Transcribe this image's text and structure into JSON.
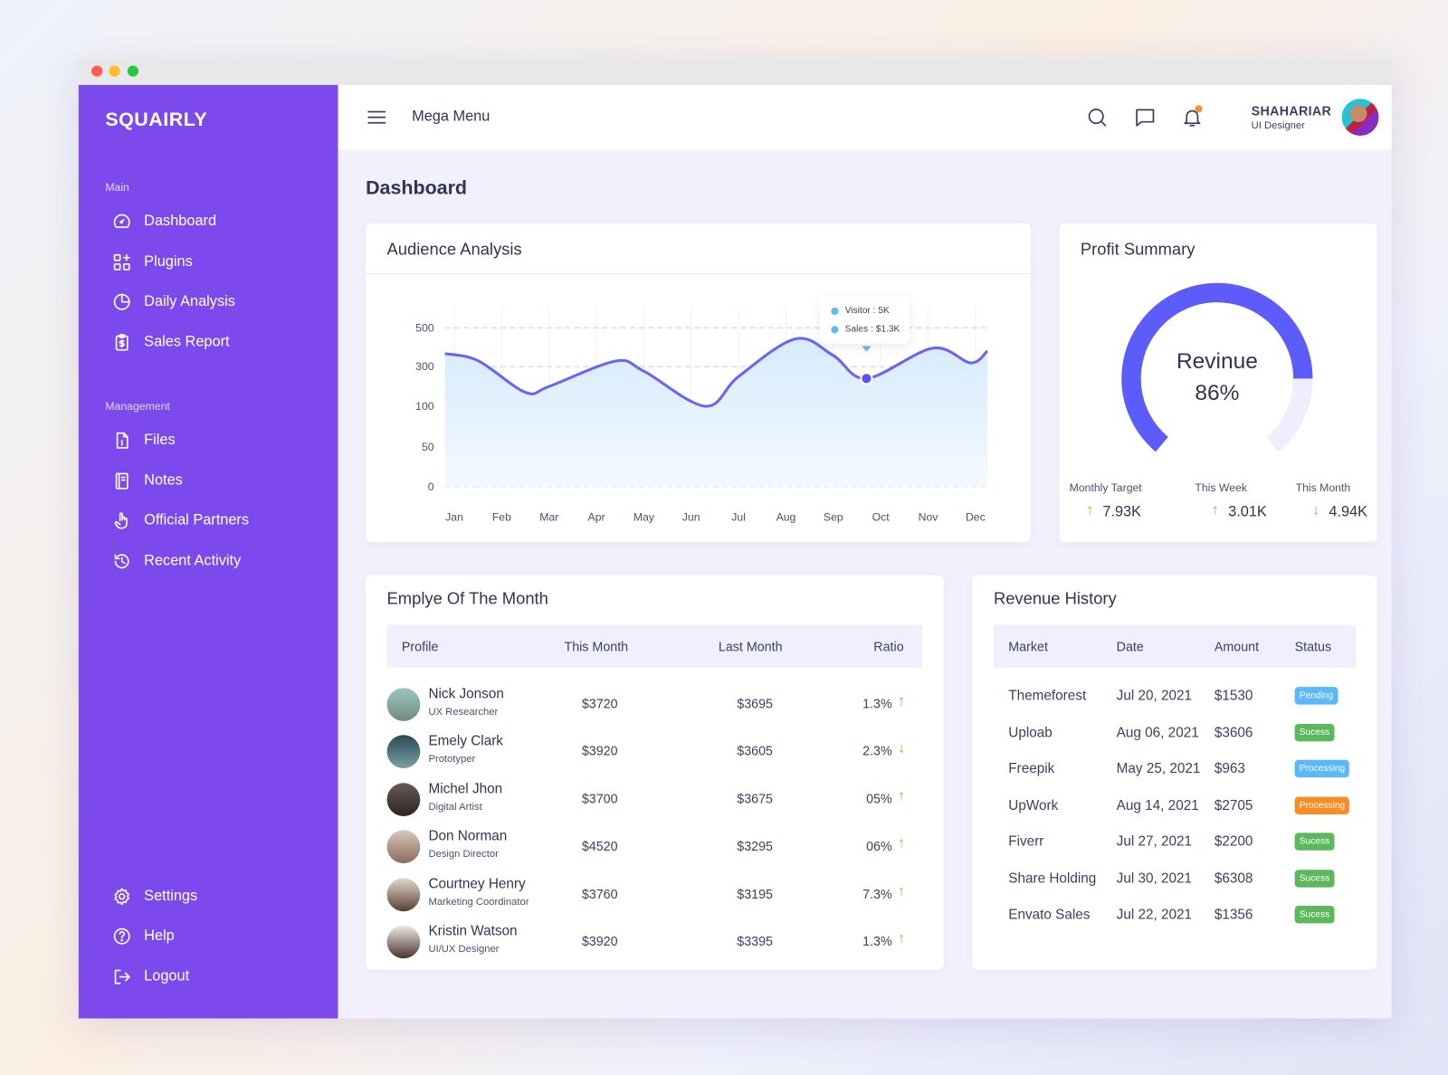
{
  "window": {
    "controls": {
      "close": "#ff5f57",
      "minimize": "#febc2e",
      "maximize": "#28c840"
    }
  },
  "brand": "SQUAIRLY",
  "sidebar": {
    "main_label": "Main",
    "main_items": [
      {
        "label": "Dashboard",
        "icon": "gauge-icon"
      },
      {
        "label": "Plugins",
        "icon": "grid-plus-icon"
      },
      {
        "label": "Daily Analysis",
        "icon": "pie-icon"
      },
      {
        "label": "Sales Report",
        "icon": "clipboard-dollar-icon"
      }
    ],
    "management_label": "Management",
    "management_items": [
      {
        "label": "Files",
        "icon": "file-icon"
      },
      {
        "label": "Notes",
        "icon": "notebook-icon"
      },
      {
        "label": "Official Partners",
        "icon": "hand-icon"
      },
      {
        "label": "Recent Activity",
        "icon": "history-icon"
      }
    ],
    "bottom_items": [
      {
        "label": "Settings",
        "icon": "gear-icon"
      },
      {
        "label": "Help",
        "icon": "help-icon"
      },
      {
        "label": "Logout",
        "icon": "logout-icon"
      }
    ]
  },
  "header": {
    "menu_label": "Mega Menu",
    "user": {
      "name": "SHAHARIAR",
      "role": "UI Designer"
    },
    "notification_dot_color": "#f7932c"
  },
  "page_title": "Dashboard",
  "audience": {
    "title": "Audience Analysis",
    "tooltip": {
      "visitor": "Visitor : 5K",
      "sales": "Sales : $1.3K"
    }
  },
  "chart_data": {
    "type": "area",
    "title": "Audience Analysis",
    "categories": [
      "Jan",
      "Feb",
      "Mar",
      "Apr",
      "May",
      "Jun",
      "Jul",
      "Aug",
      "Sep",
      "Oct",
      "Nov",
      "Dec"
    ],
    "y_ticks": [
      0,
      50,
      100,
      300,
      500
    ],
    "ylim": [
      0,
      500
    ],
    "grid": true,
    "series": [
      {
        "name": "Audience",
        "color": "#6b63f6",
        "points": [
          [
            -0.2,
            367
          ],
          [
            0.5,
            330
          ],
          [
            1.5,
            170
          ],
          [
            2,
            200
          ],
          [
            3.4,
            328
          ],
          [
            4,
            277
          ],
          [
            5.3,
            100
          ],
          [
            6,
            250
          ],
          [
            7.2,
            443
          ],
          [
            8,
            357
          ],
          [
            8.7,
            240
          ],
          [
            10.1,
            395
          ],
          [
            10.9,
            319
          ],
          [
            11.25,
            380
          ]
        ]
      }
    ],
    "highlight": {
      "x": 8.7,
      "value": 240
    }
  },
  "profit": {
    "title": "Profit Summary",
    "gauge_label": "Revinue",
    "gauge_value": "86%",
    "gauge_percent": 86,
    "stats": [
      {
        "label": "Monthly Target",
        "value": "7.93K",
        "trend": "up"
      },
      {
        "label": "This Week",
        "value": "3.01K",
        "trend": "up"
      },
      {
        "label": "This Month",
        "value": "4.94K",
        "trend": "down"
      }
    ]
  },
  "employees": {
    "title": "Emplye Of The Month",
    "columns": [
      "Profile",
      "This Month",
      "Last Month",
      "Ratio"
    ],
    "rows": [
      {
        "name": "Nick Jonson",
        "role": "UX Researcher",
        "this_month": "$3720",
        "last_month": "$3695",
        "ratio": "1.3%",
        "trend": "up"
      },
      {
        "name": "Emely Clark",
        "role": "Prototyper",
        "this_month": "$3920",
        "last_month": "$3605",
        "ratio": "2.3%",
        "trend": "down"
      },
      {
        "name": "Michel Jhon",
        "role": "Digital Artist",
        "this_month": "$3700",
        "last_month": "$3675",
        "ratio": "05%",
        "trend": "up"
      },
      {
        "name": "Don Norman",
        "role": "Design Director",
        "this_month": "$4520",
        "last_month": "$3295",
        "ratio": "06%",
        "trend": "up"
      },
      {
        "name": "Courtney Henry",
        "role": "Marketing Coordinator",
        "this_month": "$3760",
        "last_month": "$3195",
        "ratio": "7.3%",
        "trend": "up"
      },
      {
        "name": "Kristin Watson",
        "role": "UI/UX Designer",
        "this_month": "$3920",
        "last_month": "$3395",
        "ratio": "1.3%",
        "trend": "up"
      }
    ]
  },
  "revenue": {
    "title": "Revenue History",
    "columns": [
      "Market",
      "Date",
      "Amount",
      "Status"
    ],
    "rows": [
      {
        "market": "Themeforest",
        "date": "Jul 20, 2021",
        "amount": "$1530",
        "status": "Pending",
        "color": "#5bb8fb"
      },
      {
        "market": "Uploab",
        "date": "Aug 06, 2021",
        "amount": "$3606",
        "status": "Sucess",
        "color": "#5cb85c"
      },
      {
        "market": "Freepik",
        "date": "May 25, 2021",
        "amount": "$963",
        "status": "Processing",
        "color": "#5bb8fb"
      },
      {
        "market": "UpWork",
        "date": "Aug 14, 2021",
        "amount": "$2705",
        "status": "Processing",
        "color": "#fb8c23"
      },
      {
        "market": "Fiverr",
        "date": "Jul 27, 2021",
        "amount": "$2200",
        "status": "Sucess",
        "color": "#5cb85c"
      },
      {
        "market": "Share Holding",
        "date": "Jul 30, 2021",
        "amount": "$6308",
        "status": "Sucess",
        "color": "#5cb85c"
      },
      {
        "market": "Envato Sales",
        "date": "Jul 22, 2021",
        "amount": "$1356",
        "status": "Sucess",
        "color": "#5cb85c"
      }
    ]
  }
}
